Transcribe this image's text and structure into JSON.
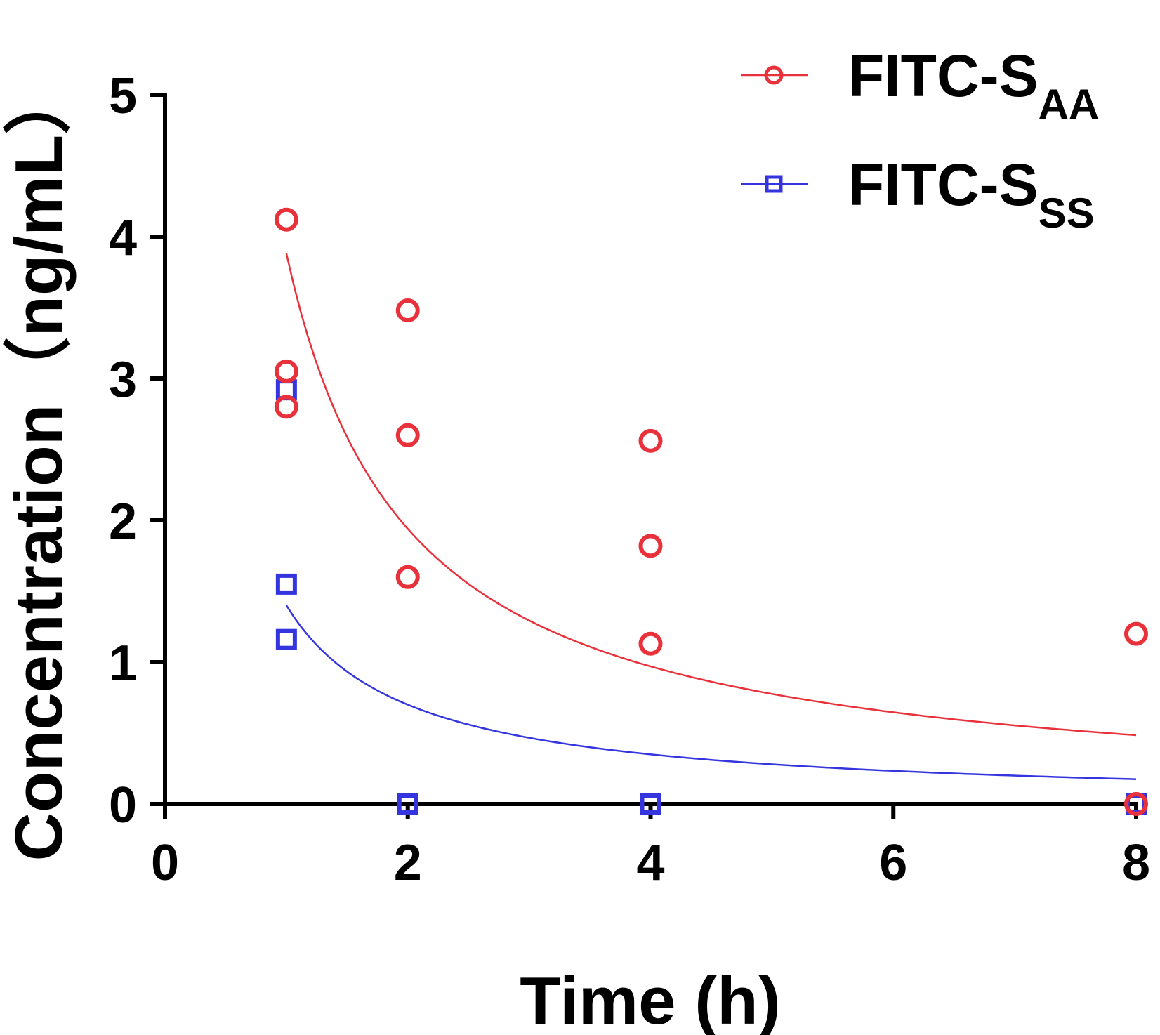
{
  "chart_data": {
    "type": "scatter",
    "title": "",
    "xlabel": "Time (h)",
    "ylabel": "Concentration（ng/mL）",
    "xlim": [
      0,
      8
    ],
    "ylim": [
      0,
      5
    ],
    "xticks": [
      0,
      2,
      4,
      6,
      8
    ],
    "yticks": [
      0,
      1,
      2,
      3,
      4,
      5
    ],
    "legend_position": "top-right",
    "series": [
      {
        "name": "FITC-SAA",
        "legend_main": "FITC-S",
        "legend_sub": "AA",
        "marker": "circle",
        "color": "#e8313a",
        "points": [
          {
            "x": 1,
            "y": 4.12
          },
          {
            "x": 1,
            "y": 3.05
          },
          {
            "x": 1,
            "y": 2.8
          },
          {
            "x": 2,
            "y": 3.48
          },
          {
            "x": 2,
            "y": 2.6
          },
          {
            "x": 2,
            "y": 1.6
          },
          {
            "x": 4,
            "y": 2.56
          },
          {
            "x": 4,
            "y": 1.82
          },
          {
            "x": 4,
            "y": 1.13
          },
          {
            "x": 8,
            "y": 1.2
          },
          {
            "x": 8,
            "y": 0.0
          }
        ],
        "fit": {
          "type": "power",
          "a": 3.88,
          "b": -1.0,
          "x_range": [
            1,
            8
          ]
        }
      },
      {
        "name": "FITC-SSS",
        "legend_main": "FITC-S",
        "legend_sub": "SS",
        "marker": "square",
        "color": "#3535e0",
        "points": [
          {
            "x": 1,
            "y": 2.92
          },
          {
            "x": 1,
            "y": 1.55
          },
          {
            "x": 1,
            "y": 1.16
          },
          {
            "x": 2,
            "y": 0.0
          },
          {
            "x": 4,
            "y": 0.0
          },
          {
            "x": 8,
            "y": 0.0
          }
        ],
        "fit": {
          "type": "power",
          "a": 1.4,
          "b": -1.0,
          "x_range": [
            1,
            8
          ]
        }
      }
    ]
  }
}
